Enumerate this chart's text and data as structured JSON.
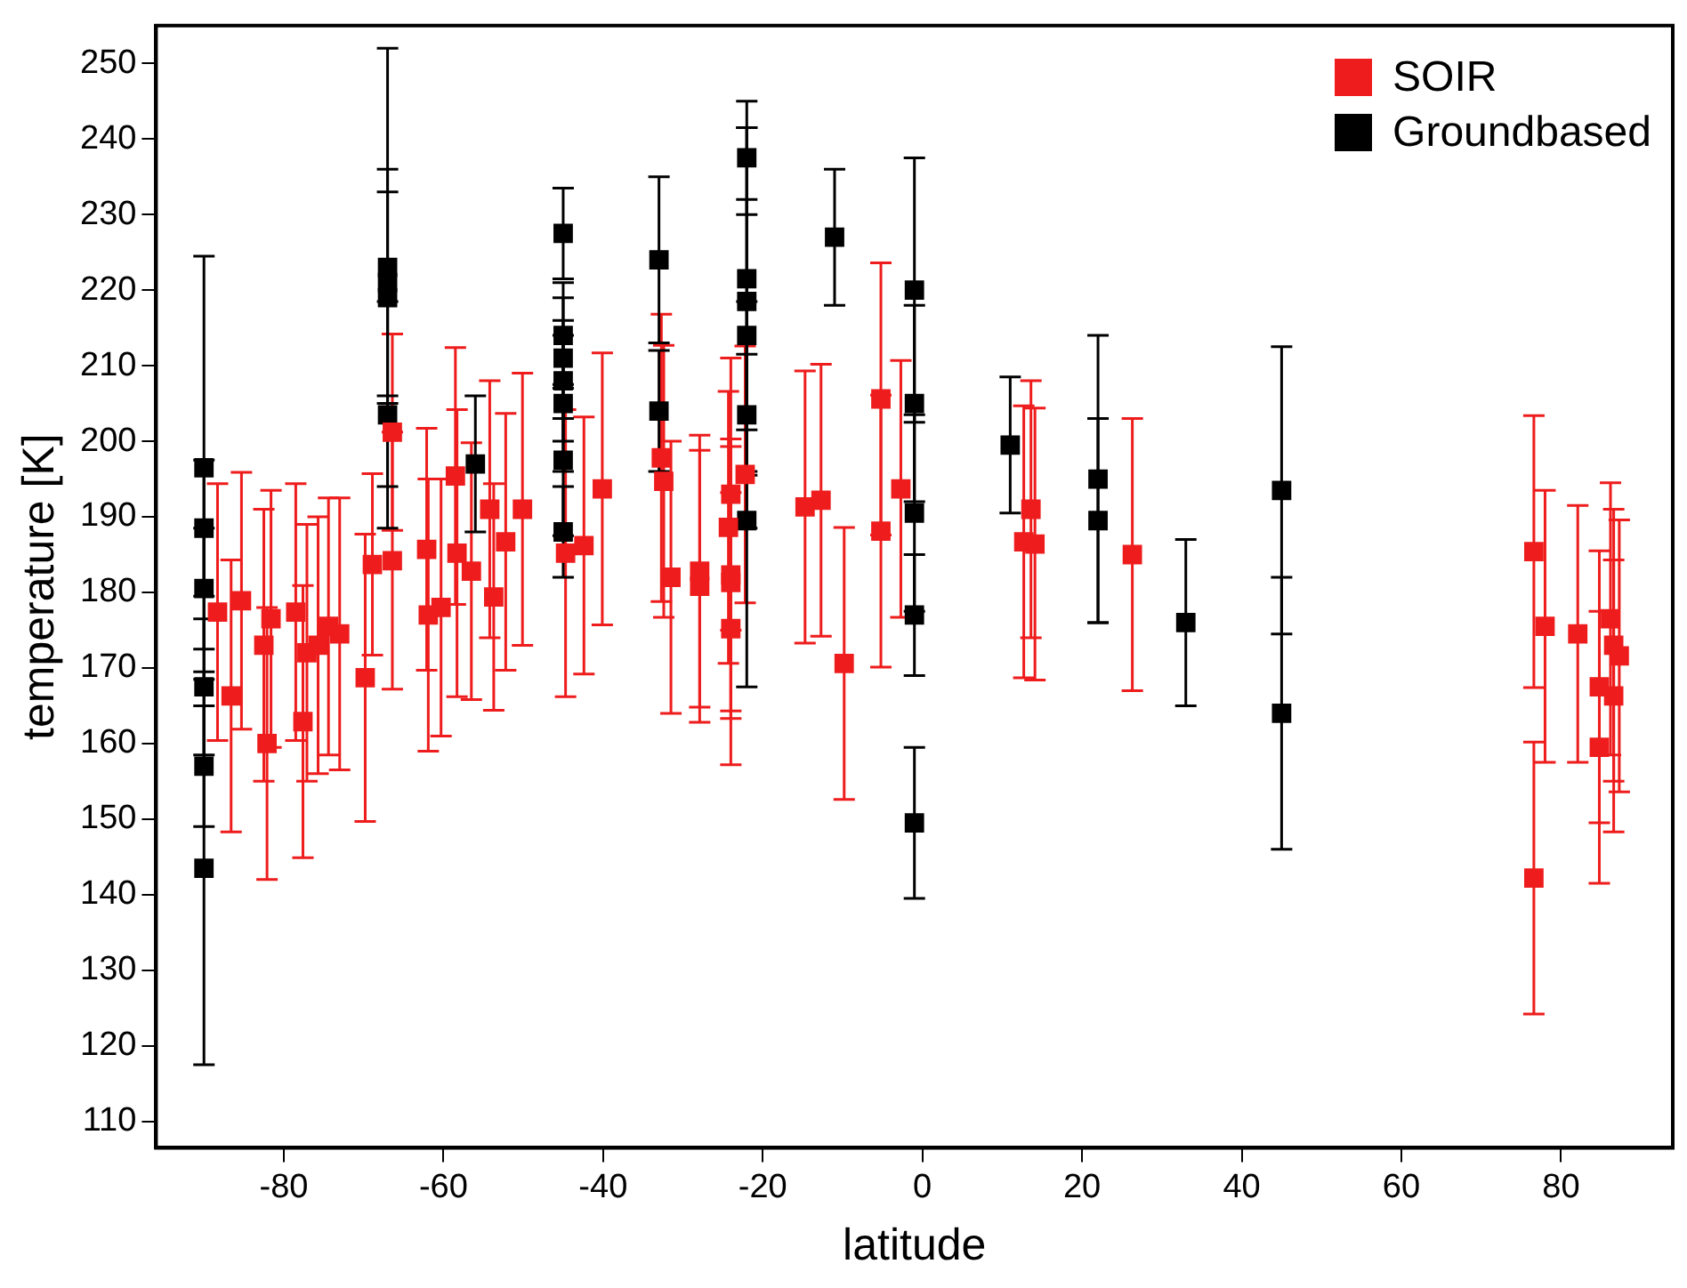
{
  "chart_data": {
    "type": "scatter",
    "xlabel": "latitude",
    "ylabel": "temperature [K]",
    "xlim": [
      -96,
      94
    ],
    "ylim": [
      106.5,
      255
    ],
    "xticks": [
      -80,
      -60,
      -40,
      -20,
      0,
      20,
      40,
      60,
      80
    ],
    "yticks": [
      110,
      120,
      130,
      140,
      150,
      160,
      170,
      180,
      190,
      200,
      210,
      220,
      230,
      240,
      250
    ],
    "grid": false,
    "legend": "top right",
    "marker": "square",
    "series": [
      {
        "name": "SOIR",
        "color": "#ee1c1c",
        "x": [
          -88.3,
          -86.6,
          -85.3,
          -82.5,
          -82.1,
          -81.6,
          -78.5,
          -77.6,
          -77.1,
          -75.7,
          -74.4,
          -73,
          -69.8,
          -68.9,
          -66.4,
          -66.4,
          -62.1,
          -61.9,
          -60.3,
          -58.5,
          -58.3,
          -56.5,
          -54.2,
          -53.7,
          -52.2,
          -50.1,
          -44.7,
          -42.4,
          -40.1,
          -32.7,
          -32.4,
          -31.5,
          -27.9,
          -27.9,
          -24,
          -24.3,
          -24,
          -24,
          -24,
          -22.2,
          -14.7,
          -12.7,
          -9.8,
          -5.2,
          -5.2,
          -2.7,
          13.6,
          12.7,
          14.1,
          26.3,
          76.6,
          76.6,
          78,
          82.1,
          84.8,
          84.8,
          86.2,
          86.6,
          86.6,
          87.3
        ],
        "values": [
          177.4,
          166.3,
          178.9,
          173,
          160,
          176.5,
          177.4,
          162.9,
          172,
          173,
          175.5,
          174.5,
          168.7,
          183.7,
          184.2,
          201.2,
          185.7,
          177,
          178,
          195.4,
          185.2,
          182.8,
          191,
          179.4,
          186.7,
          191,
          185.2,
          186.2,
          193.7,
          197.8,
          194.7,
          182,
          182.8,
          180.8,
          193,
          188.6,
          182.3,
          181.3,
          175.2,
          195.6,
          191.3,
          192.2,
          170.6,
          205.6,
          188.1,
          193.7,
          191,
          186.7,
          186.4,
          185,
          185.4,
          142.2,
          175.5,
          174.5,
          167.5,
          159.5,
          176.5,
          173,
          166.3,
          171.6
        ],
        "errors": [
          17,
          18,
          17,
          18,
          18,
          17,
          17,
          18,
          17,
          17,
          17,
          18,
          19,
          12,
          17,
          13,
          16,
          18,
          17,
          17,
          19,
          17,
          17,
          15,
          17,
          18,
          19,
          17,
          18,
          19,
          18,
          18,
          18,
          18,
          18,
          18,
          18,
          18,
          18,
          17,
          18,
          18,
          18,
          18,
          18,
          17,
          17,
          18,
          18,
          18,
          18,
          18,
          18,
          17,
          18,
          18,
          18,
          18,
          18,
          18
        ]
      },
      {
        "name": "Groundbased",
        "color": "#000000",
        "x": [
          -90,
          -90,
          -90,
          -90,
          -90,
          -90,
          -67,
          -67,
          -67,
          -67,
          -56,
          -45,
          -45,
          -45,
          -45,
          -45,
          -45,
          -45,
          -33,
          -33,
          -22,
          -22,
          -22,
          -22,
          -22,
          -22,
          -11,
          -1,
          -1,
          -1,
          -1,
          -1,
          11,
          22,
          22,
          33,
          45,
          45
        ],
        "values": [
          196.5,
          188.5,
          180.5,
          167.5,
          157,
          143.5,
          223,
          221,
          219,
          203.5,
          197,
          227.5,
          214,
          211,
          208,
          205,
          197.5,
          188,
          224,
          204,
          237.5,
          221.5,
          218.5,
          214,
          203.5,
          189.5,
          227,
          220,
          205,
          190.5,
          177,
          149.5,
          199.5,
          195,
          189.5,
          176,
          193.5,
          164
        ],
        "errors": [
          28,
          9,
          8,
          9,
          8,
          26,
          29,
          15,
          14,
          15,
          9,
          6,
          7,
          8,
          8,
          9,
          10,
          6,
          11,
          8,
          7.5,
          20,
          23,
          18,
          15,
          22,
          9,
          17.5,
          13,
          13,
          8,
          10,
          9,
          19,
          13.5,
          11,
          19,
          18
        ]
      }
    ]
  }
}
